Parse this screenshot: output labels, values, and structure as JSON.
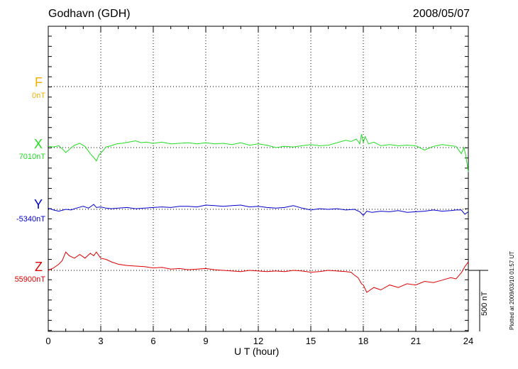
{
  "header": {
    "station": "Godhavn (GDH)",
    "date": "2008/05/07"
  },
  "colors": {
    "F": "#f0b000",
    "X": "#22dd22",
    "Y": "#0000cc",
    "Z": "#dd0000"
  },
  "scale_label": "500 nT",
  "plotted_note": "Plotted at 2009/03/10 01:57 UT",
  "chart_data": {
    "type": "line",
    "xlabel": "U T (hour)",
    "xlim": [
      0,
      24
    ],
    "x_ticks": [
      "0",
      "3",
      "6",
      "9",
      "12",
      "15",
      "18",
      "21",
      "24"
    ],
    "y_unit": "nT",
    "scale_bar_nT": 500,
    "grid": true,
    "series": [
      {
        "name": "F",
        "baseline_label": "0nT",
        "x": [],
        "values": []
      },
      {
        "name": "X",
        "baseline_label": "7010nT",
        "x": [
          0,
          0.3,
          0.6,
          0.8,
          1.0,
          1.2,
          1.5,
          1.8,
          2.1,
          2.4,
          2.6,
          2.75,
          2.9,
          3.1,
          3.3,
          3.6,
          3.9,
          4.2,
          4.6,
          5.0,
          5.3,
          5.6,
          6.0,
          6.5,
          7.0,
          7.5,
          8.0,
          8.5,
          9.0,
          9.5,
          10.0,
          10.5,
          11.0,
          11.5,
          12.0,
          12.5,
          13.0,
          13.5,
          14.0,
          14.5,
          15.0,
          15.5,
          16.0,
          16.5,
          17.0,
          17.3,
          17.6,
          17.8,
          17.9,
          18.0,
          18.1,
          18.3,
          18.6,
          19.0,
          19.5,
          20.0,
          20.5,
          21.0,
          21.5,
          22.0,
          22.5,
          23.0,
          23.3,
          23.6,
          23.75,
          23.85,
          24.0
        ],
        "values": [
          10,
          5,
          15,
          -10,
          -40,
          -15,
          20,
          35,
          10,
          -50,
          -80,
          -110,
          -60,
          -30,
          5,
          15,
          30,
          35,
          45,
          55,
          40,
          45,
          35,
          45,
          30,
          35,
          40,
          30,
          40,
          30,
          35,
          25,
          40,
          20,
          30,
          20,
          0,
          10,
          5,
          15,
          25,
          15,
          20,
          40,
          60,
          50,
          70,
          30,
          110,
          40,
          90,
          30,
          45,
          15,
          25,
          15,
          20,
          15,
          -20,
          10,
          25,
          15,
          10,
          -50,
          0,
          -60,
          -200
        ]
      },
      {
        "name": "Y",
        "baseline_label": "-5340nT",
        "x": [
          0,
          0.3,
          0.6,
          1.0,
          1.3,
          1.6,
          2.0,
          2.3,
          2.6,
          2.75,
          3.0,
          3.3,
          3.6,
          4.0,
          4.5,
          5.0,
          5.5,
          6.0,
          6.5,
          7.0,
          7.5,
          8.0,
          8.5,
          9.0,
          9.5,
          10.0,
          10.5,
          11.0,
          11.5,
          12.0,
          12.5,
          13.0,
          13.5,
          14.0,
          14.5,
          15.0,
          15.5,
          16.0,
          16.5,
          17.0,
          17.5,
          17.8,
          18.0,
          18.2,
          18.5,
          19.0,
          19.5,
          20.0,
          20.5,
          21.0,
          21.5,
          22.0,
          22.5,
          23.0,
          23.3,
          23.6,
          23.8,
          24.0
        ],
        "values": [
          10,
          -5,
          -15,
          0,
          -5,
          10,
          25,
          10,
          40,
          15,
          20,
          10,
          5,
          10,
          15,
          5,
          10,
          15,
          20,
          15,
          25,
          25,
          20,
          35,
          30,
          25,
          30,
          35,
          20,
          25,
          15,
          10,
          15,
          30,
          10,
          -5,
          5,
          0,
          5,
          -5,
          0,
          -20,
          -50,
          -15,
          -25,
          -15,
          -20,
          -10,
          -25,
          -20,
          -15,
          -5,
          -15,
          -10,
          -5,
          -5,
          -40,
          -20
        ]
      },
      {
        "name": "Z",
        "baseline_label": "55900nT",
        "x": [
          0,
          0.3,
          0.6,
          0.8,
          1.0,
          1.2,
          1.5,
          1.8,
          2.1,
          2.4,
          2.6,
          2.75,
          3.0,
          3.3,
          3.6,
          4.0,
          4.5,
          5.0,
          5.5,
          6.0,
          6.5,
          7.0,
          7.5,
          8.0,
          8.5,
          9.0,
          9.5,
          10.0,
          10.5,
          11.0,
          11.5,
          12.0,
          12.5,
          13.0,
          13.5,
          14.0,
          14.5,
          15.0,
          15.5,
          16.0,
          16.5,
          17.0,
          17.3,
          17.5,
          17.7,
          17.9,
          18.0,
          18.2,
          18.6,
          19.0,
          19.5,
          20.0,
          20.5,
          21.0,
          21.5,
          22.0,
          22.5,
          23.0,
          23.3,
          23.6,
          23.8,
          24.0
        ],
        "values": [
          0,
          20,
          50,
          80,
          150,
          120,
          100,
          130,
          100,
          140,
          120,
          150,
          100,
          90,
          70,
          50,
          40,
          35,
          30,
          20,
          25,
          10,
          15,
          5,
          10,
          15,
          5,
          0,
          -5,
          -10,
          0,
          -5,
          -10,
          -5,
          -10,
          0,
          -5,
          -15,
          -10,
          0,
          -5,
          -10,
          -15,
          -40,
          -60,
          -110,
          -120,
          -180,
          -140,
          -160,
          -120,
          -140,
          -110,
          -120,
          -90,
          -100,
          -80,
          -60,
          -70,
          -20,
          30,
          70
        ]
      }
    ]
  }
}
